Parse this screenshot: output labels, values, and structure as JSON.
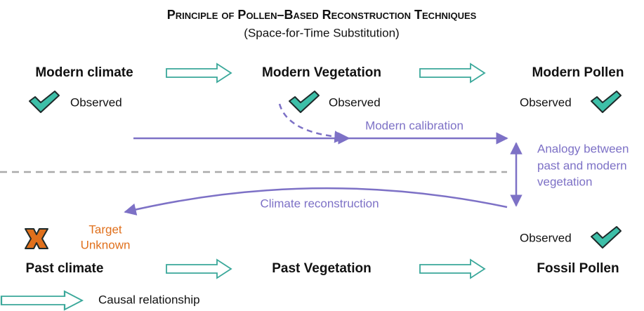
{
  "header": {
    "title": "Principle of Pollen–Based Reconstruction Techniques",
    "subtitle": "(Space-for-Time Substitution)"
  },
  "nodes": [
    {
      "label": "Modern climate",
      "status": "Observed"
    },
    {
      "label": "Modern Vegetation",
      "status": "Observed"
    },
    {
      "label": "Modern Pollen",
      "status": "Observed"
    },
    {
      "label": "Past climate",
      "status": [
        "Target",
        "Unknown"
      ]
    },
    {
      "label": "Past Vegetation"
    },
    {
      "label": "Fossil Pollen",
      "status": "Observed"
    }
  ],
  "links": {
    "calibration": "Modern calibration",
    "reconstruction": "Climate reconstruction",
    "analogy": [
      "Analogy between",
      "past and modern",
      "vegetation"
    ]
  },
  "legend": {
    "causal": "Causal relationship"
  }
}
